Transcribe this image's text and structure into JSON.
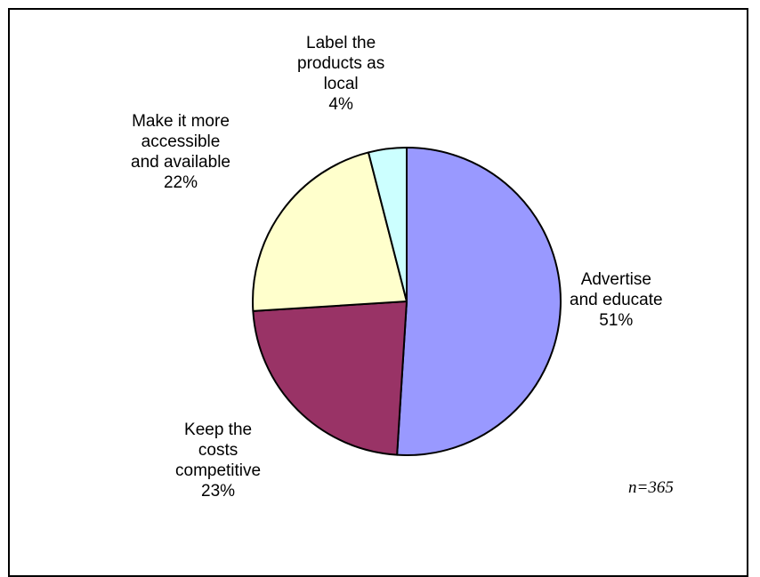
{
  "chart_data": {
    "type": "pie",
    "slices": [
      {
        "label": [
          "Advertise",
          "and educate"
        ],
        "value": 51,
        "value_label": "51%",
        "color": "#9999FF"
      },
      {
        "label": [
          "Keep the",
          "costs",
          "competitive"
        ],
        "value": 23,
        "value_label": "23%",
        "color": "#993366"
      },
      {
        "label": [
          "Make it more",
          "accessible",
          "and available"
        ],
        "value": 22,
        "value_label": "22%",
        "color": "#FFFFCC"
      },
      {
        "label": [
          "Label the",
          "products as",
          "local"
        ],
        "value": 4,
        "value_label": "4%",
        "color": "#CCFFFF"
      }
    ],
    "start": "12 o'clock",
    "direction": "clockwise"
  },
  "note": "n=365"
}
